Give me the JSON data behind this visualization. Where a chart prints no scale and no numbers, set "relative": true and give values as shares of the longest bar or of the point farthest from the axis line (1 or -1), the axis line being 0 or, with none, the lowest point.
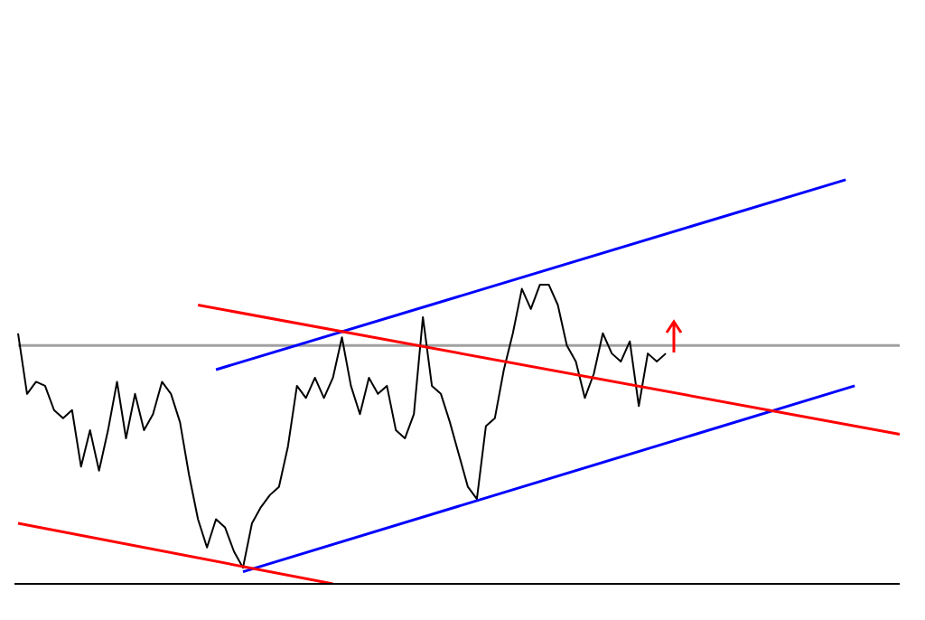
{
  "chart_data": {
    "type": "line",
    "relative": true,
    "marker": "none",
    "categories": [
      null,
      null,
      null,
      null,
      null,
      null,
      null,
      null,
      null,
      null,
      null,
      null,
      null,
      null,
      null,
      null,
      null,
      null,
      null,
      null,
      null,
      null,
      null,
      null,
      null,
      null,
      null,
      null,
      null,
      null,
      null,
      null,
      null,
      null,
      null,
      null,
      null,
      null,
      null,
      null,
      null,
      null,
      null,
      null,
      null,
      null,
      null,
      null,
      null,
      null,
      null,
      null,
      null,
      null,
      null,
      null,
      null,
      null,
      null,
      null,
      null,
      null,
      null,
      null,
      null,
      null,
      null,
      null,
      null,
      null,
      null,
      null,
      null,
      null,
      null,
      null,
      null,
      null,
      null,
      null,
      null,
      null,
      null,
      null,
      null,
      null,
      null,
      null,
      null,
      null,
      null,
      null,
      null,
      null,
      null,
      null,
      null,
      null,
      null
    ],
    "series": [
      {
        "color": "#a0a0a0",
        "values": [
          0.59,
          null,
          null,
          null,
          null,
          null,
          null,
          null,
          null,
          null,
          null,
          null,
          null,
          null,
          null,
          null,
          null,
          null,
          null,
          null,
          null,
          null,
          null,
          null,
          null,
          null,
          null,
          null,
          null,
          null,
          null,
          null,
          null,
          null,
          null,
          null,
          null,
          null,
          null,
          null,
          null,
          null,
          null,
          null,
          null,
          null,
          null,
          null,
          null,
          null,
          null,
          null,
          null,
          null,
          null,
          null,
          null,
          null,
          null,
          null,
          null,
          null,
          null,
          null,
          null,
          null,
          null,
          null,
          null,
          null,
          null,
          null,
          null,
          null,
          null,
          null,
          null,
          null,
          null,
          null,
          null,
          null,
          null,
          null,
          null,
          null,
          null,
          null,
          null,
          null,
          null,
          null,
          null,
          null,
          null,
          null,
          null,
          null,
          0.59
        ]
      },
      {
        "color": "#000000",
        "values": [
          0.62,
          0.47,
          0.5,
          0.49,
          0.43,
          0.41,
          0.43,
          0.29,
          0.38,
          0.28,
          0.38,
          0.5,
          0.36,
          0.47,
          0.38,
          0.42,
          0.5,
          0.47,
          0.4,
          0.27,
          0.16,
          0.09,
          0.16,
          0.14,
          0.08,
          0.04,
          0.15,
          0.19,
          0.22,
          0.24,
          0.34,
          0.49,
          0.46,
          0.51,
          0.46,
          0.51,
          0.61,
          0.49,
          0.42,
          0.51,
          0.47,
          0.49,
          0.38,
          0.36,
          0.42,
          0.66,
          0.49,
          0.47,
          0.4,
          0.32,
          0.24,
          0.21,
          0.39,
          0.41,
          0.53,
          0.62,
          0.73,
          0.68,
          0.74,
          0.74,
          0.69,
          0.59,
          0.55,
          0.46,
          0.52,
          0.62,
          0.57,
          0.55,
          0.6,
          0.44,
          0.57,
          0.55,
          0.57,
          null,
          null,
          null,
          null,
          null,
          null,
          null,
          null,
          null,
          null,
          null,
          null,
          null,
          null,
          null,
          null,
          null,
          null,
          null,
          null,
          null,
          null,
          null,
          null,
          null,
          null
        ]
      },
      {
        "color": "#0000ff",
        "values": [
          null,
          null,
          null,
          null,
          null,
          null,
          null,
          null,
          null,
          null,
          null,
          null,
          null,
          null,
          null,
          null,
          null,
          null,
          null,
          null,
          null,
          null,
          0.53,
          null,
          null,
          null,
          null,
          null,
          null,
          null,
          null,
          null,
          null,
          null,
          null,
          null,
          null,
          null,
          null,
          null,
          null,
          null,
          null,
          null,
          null,
          null,
          null,
          null,
          null,
          null,
          null,
          null,
          null,
          null,
          null,
          null,
          null,
          null,
          null,
          null,
          null,
          null,
          null,
          null,
          null,
          null,
          null,
          null,
          null,
          null,
          null,
          null,
          null,
          null,
          null,
          null,
          null,
          null,
          null,
          null,
          null,
          null,
          null,
          null,
          null,
          null,
          null,
          null,
          null,
          null,
          null,
          null,
          1.0,
          null,
          null,
          null,
          null,
          null,
          null
        ]
      },
      {
        "color": "#0000ff",
        "values": [
          null,
          null,
          null,
          null,
          null,
          null,
          null,
          null,
          null,
          null,
          null,
          null,
          null,
          null,
          null,
          null,
          null,
          null,
          null,
          null,
          null,
          null,
          null,
          null,
          null,
          0.03,
          null,
          null,
          null,
          null,
          null,
          null,
          null,
          null,
          null,
          null,
          null,
          null,
          null,
          null,
          null,
          null,
          null,
          null,
          null,
          null,
          null,
          null,
          null,
          null,
          null,
          null,
          null,
          null,
          null,
          null,
          null,
          null,
          null,
          null,
          null,
          null,
          null,
          null,
          null,
          null,
          null,
          null,
          null,
          null,
          null,
          null,
          null,
          null,
          null,
          null,
          null,
          null,
          null,
          null,
          null,
          null,
          null,
          null,
          null,
          null,
          null,
          null,
          null,
          null,
          null,
          null,
          null,
          0.49,
          null,
          null,
          null,
          null,
          null
        ]
      },
      {
        "color": "#ff0000",
        "values": [
          null,
          null,
          null,
          null,
          null,
          null,
          null,
          null,
          null,
          null,
          null,
          null,
          null,
          null,
          null,
          null,
          null,
          null,
          null,
          null,
          0.69,
          null,
          null,
          null,
          null,
          null,
          null,
          null,
          null,
          null,
          null,
          null,
          null,
          null,
          null,
          null,
          null,
          null,
          null,
          null,
          null,
          null,
          null,
          null,
          null,
          null,
          null,
          null,
          null,
          null,
          null,
          null,
          null,
          null,
          null,
          null,
          null,
          null,
          null,
          null,
          null,
          null,
          null,
          null,
          null,
          null,
          null,
          null,
          null,
          null,
          null,
          null,
          null,
          null,
          null,
          null,
          null,
          null,
          null,
          null,
          null,
          null,
          null,
          null,
          null,
          null,
          null,
          null,
          null,
          null,
          null,
          null,
          null,
          null,
          null,
          null,
          null,
          null,
          0.37
        ]
      },
      {
        "color": "#ff0000",
        "values": [
          0.15,
          null,
          null,
          null,
          null,
          null,
          null,
          null,
          null,
          null,
          null,
          null,
          null,
          null,
          null,
          null,
          null,
          null,
          null,
          null,
          null,
          null,
          null,
          null,
          null,
          null,
          null,
          null,
          null,
          null,
          null,
          null,
          null,
          null,
          null,
          0.0,
          null,
          null,
          null,
          null,
          null,
          null,
          null,
          null,
          null,
          null,
          null,
          null,
          null,
          null,
          null,
          null,
          null,
          null,
          null,
          null,
          null,
          null,
          null,
          null,
          null,
          null,
          null,
          null,
          null,
          null,
          null,
          null,
          null,
          null,
          null,
          null,
          null,
          null,
          null,
          null,
          null,
          null,
          null,
          null,
          null,
          null,
          null,
          null,
          null,
          null,
          null,
          null,
          null,
          null,
          null,
          null,
          null,
          null,
          null,
          null,
          null,
          null,
          null
        ]
      }
    ]
  }
}
